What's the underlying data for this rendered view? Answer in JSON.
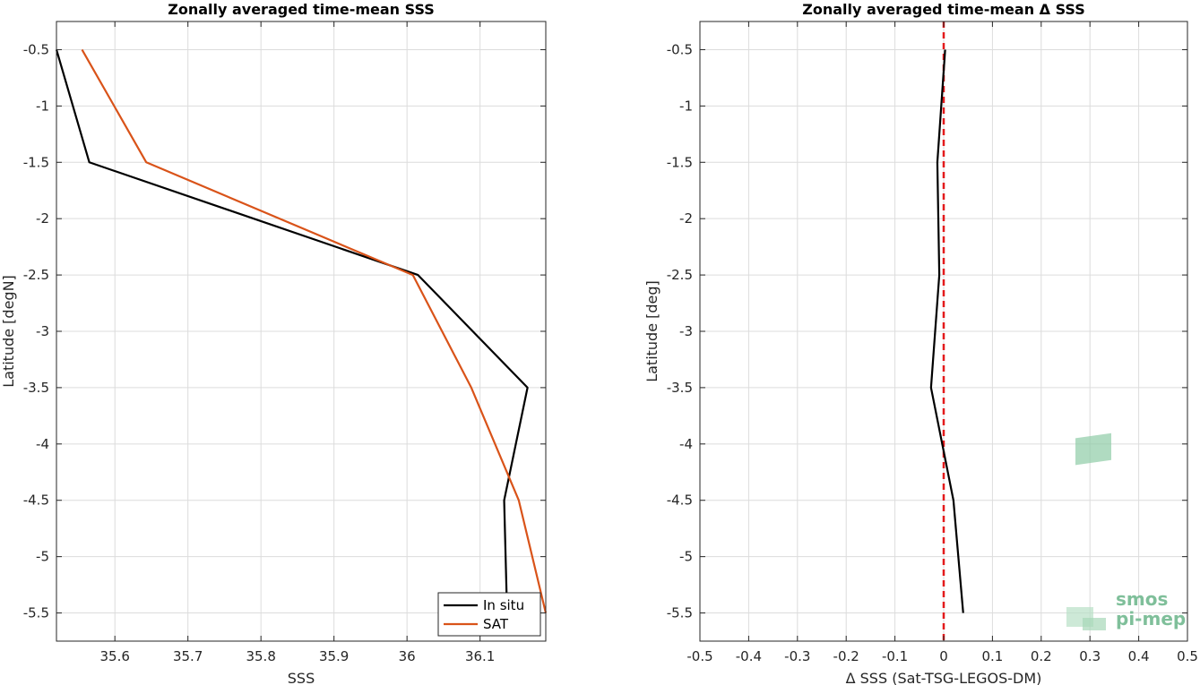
{
  "chart_data": [
    {
      "type": "line",
      "title": "Zonally averaged time-mean SSS",
      "xlabel": "SSS",
      "ylabel": "Latitude [degN]",
      "xlim": [
        35.52,
        36.19
      ],
      "ylim": [
        -5.75,
        -0.25
      ],
      "xticks": [
        35.6,
        35.7,
        35.8,
        35.9,
        36.0,
        36.1
      ],
      "xtick_labels": [
        "35.6",
        "35.7",
        "35.8",
        "35.9",
        "36",
        "36.1"
      ],
      "yticks": [
        -0.5,
        -1,
        -1.5,
        -2,
        -2.5,
        -3,
        -3.5,
        -4,
        -4.5,
        -5,
        -5.5
      ],
      "ytick_labels": [
        "-0.5",
        "-1",
        "-1.5",
        "-2",
        "-2.5",
        "-3",
        "-3.5",
        "-4",
        "-4.5",
        "-5",
        "-5.5"
      ],
      "grid": true,
      "legend_position": "bottom-right",
      "series": [
        {
          "name": "In situ",
          "color": "#000000",
          "x": [
            35.52,
            35.565,
            36.015,
            36.165,
            36.133,
            36.137
          ],
          "y": [
            -0.5,
            -1.5,
            -2.5,
            -3.5,
            -4.5,
            -5.5
          ]
        },
        {
          "name": "SAT",
          "color": "#d95319",
          "x": [
            35.555,
            35.643,
            36.008,
            36.088,
            36.153,
            36.19
          ],
          "y": [
            -0.5,
            -1.5,
            -2.5,
            -3.5,
            -4.5,
            -5.5
          ]
        }
      ]
    },
    {
      "type": "line",
      "title": "Zonally averaged time-mean Δ SSS",
      "xlabel": "Δ SSS (Sat-TSG-LEGOS-DM)",
      "ylabel": "Latitude [deg]",
      "xlim": [
        -0.5,
        0.5
      ],
      "ylim": [
        -5.75,
        -0.25
      ],
      "xticks": [
        -0.5,
        -0.4,
        -0.3,
        -0.2,
        -0.1,
        0,
        0.1,
        0.2,
        0.3,
        0.4,
        0.5
      ],
      "xtick_labels": [
        "-0.5",
        "-0.4",
        "-0.3",
        "-0.2",
        "-0.1",
        "0",
        "0.1",
        "0.2",
        "0.3",
        "0.4",
        "0.5"
      ],
      "yticks": [
        -0.5,
        -1,
        -1.5,
        -2,
        -2.5,
        -3,
        -3.5,
        -4,
        -4.5,
        -5,
        -5.5
      ],
      "ytick_labels": [
        "-0.5",
        "-1",
        "-1.5",
        "-2",
        "-2.5",
        "-3",
        "-3.5",
        "-4",
        "-4.5",
        "-5",
        "-5.5"
      ],
      "grid": true,
      "reference_line": {
        "x": 0,
        "color": "#e31a1c",
        "style": "dashed"
      },
      "series": [
        {
          "color": "#000000",
          "x": [
            0.003,
            -0.013,
            -0.009,
            -0.026,
            0.02,
            0.04
          ],
          "y": [
            -0.5,
            -1.5,
            -2.5,
            -3.5,
            -4.5,
            -5.5
          ]
        }
      ]
    }
  ],
  "logo": {
    "line1": "smos",
    "line2": "pi-mep",
    "color": "#7fbf9a"
  }
}
